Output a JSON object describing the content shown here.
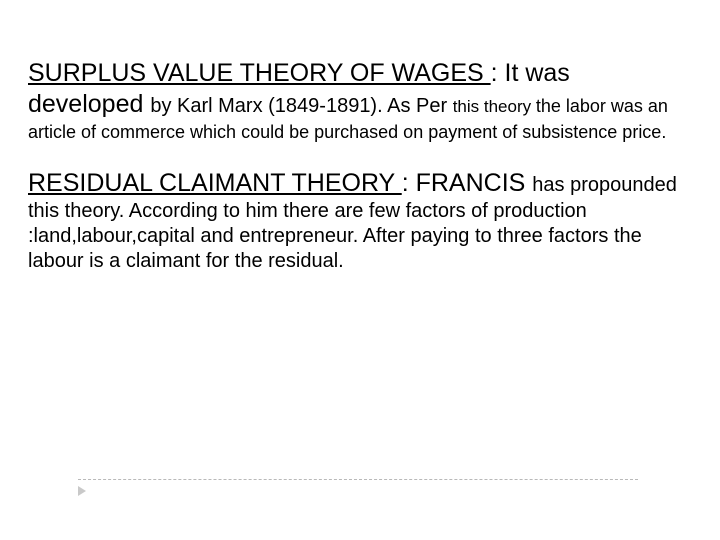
{
  "theory1": {
    "title": "SURPLUS VALUE THEORY OF WAGES ",
    "lead_a": ": It was developed ",
    "mid": "by Karl Marx (1849-1891). As Per ",
    "tail": "this theory ",
    "body": "the labor was an article of commerce which could be purchased on payment of subsistence price."
  },
  "theory2": {
    "title": "RESIDUAL CLAIMANT THEORY ",
    "lead_a": ": FRANCIS ",
    "tail": "has ",
    "body": "propounded this theory. According to him there are few factors of production :land,labour,capital and entrepreneur. After paying to three factors the labour is a claimant  for the residual."
  },
  "colors": {
    "text": "#000000",
    "background": "#ffffff",
    "divider": "#b9b9b9",
    "marker": "#c9c9c9"
  }
}
